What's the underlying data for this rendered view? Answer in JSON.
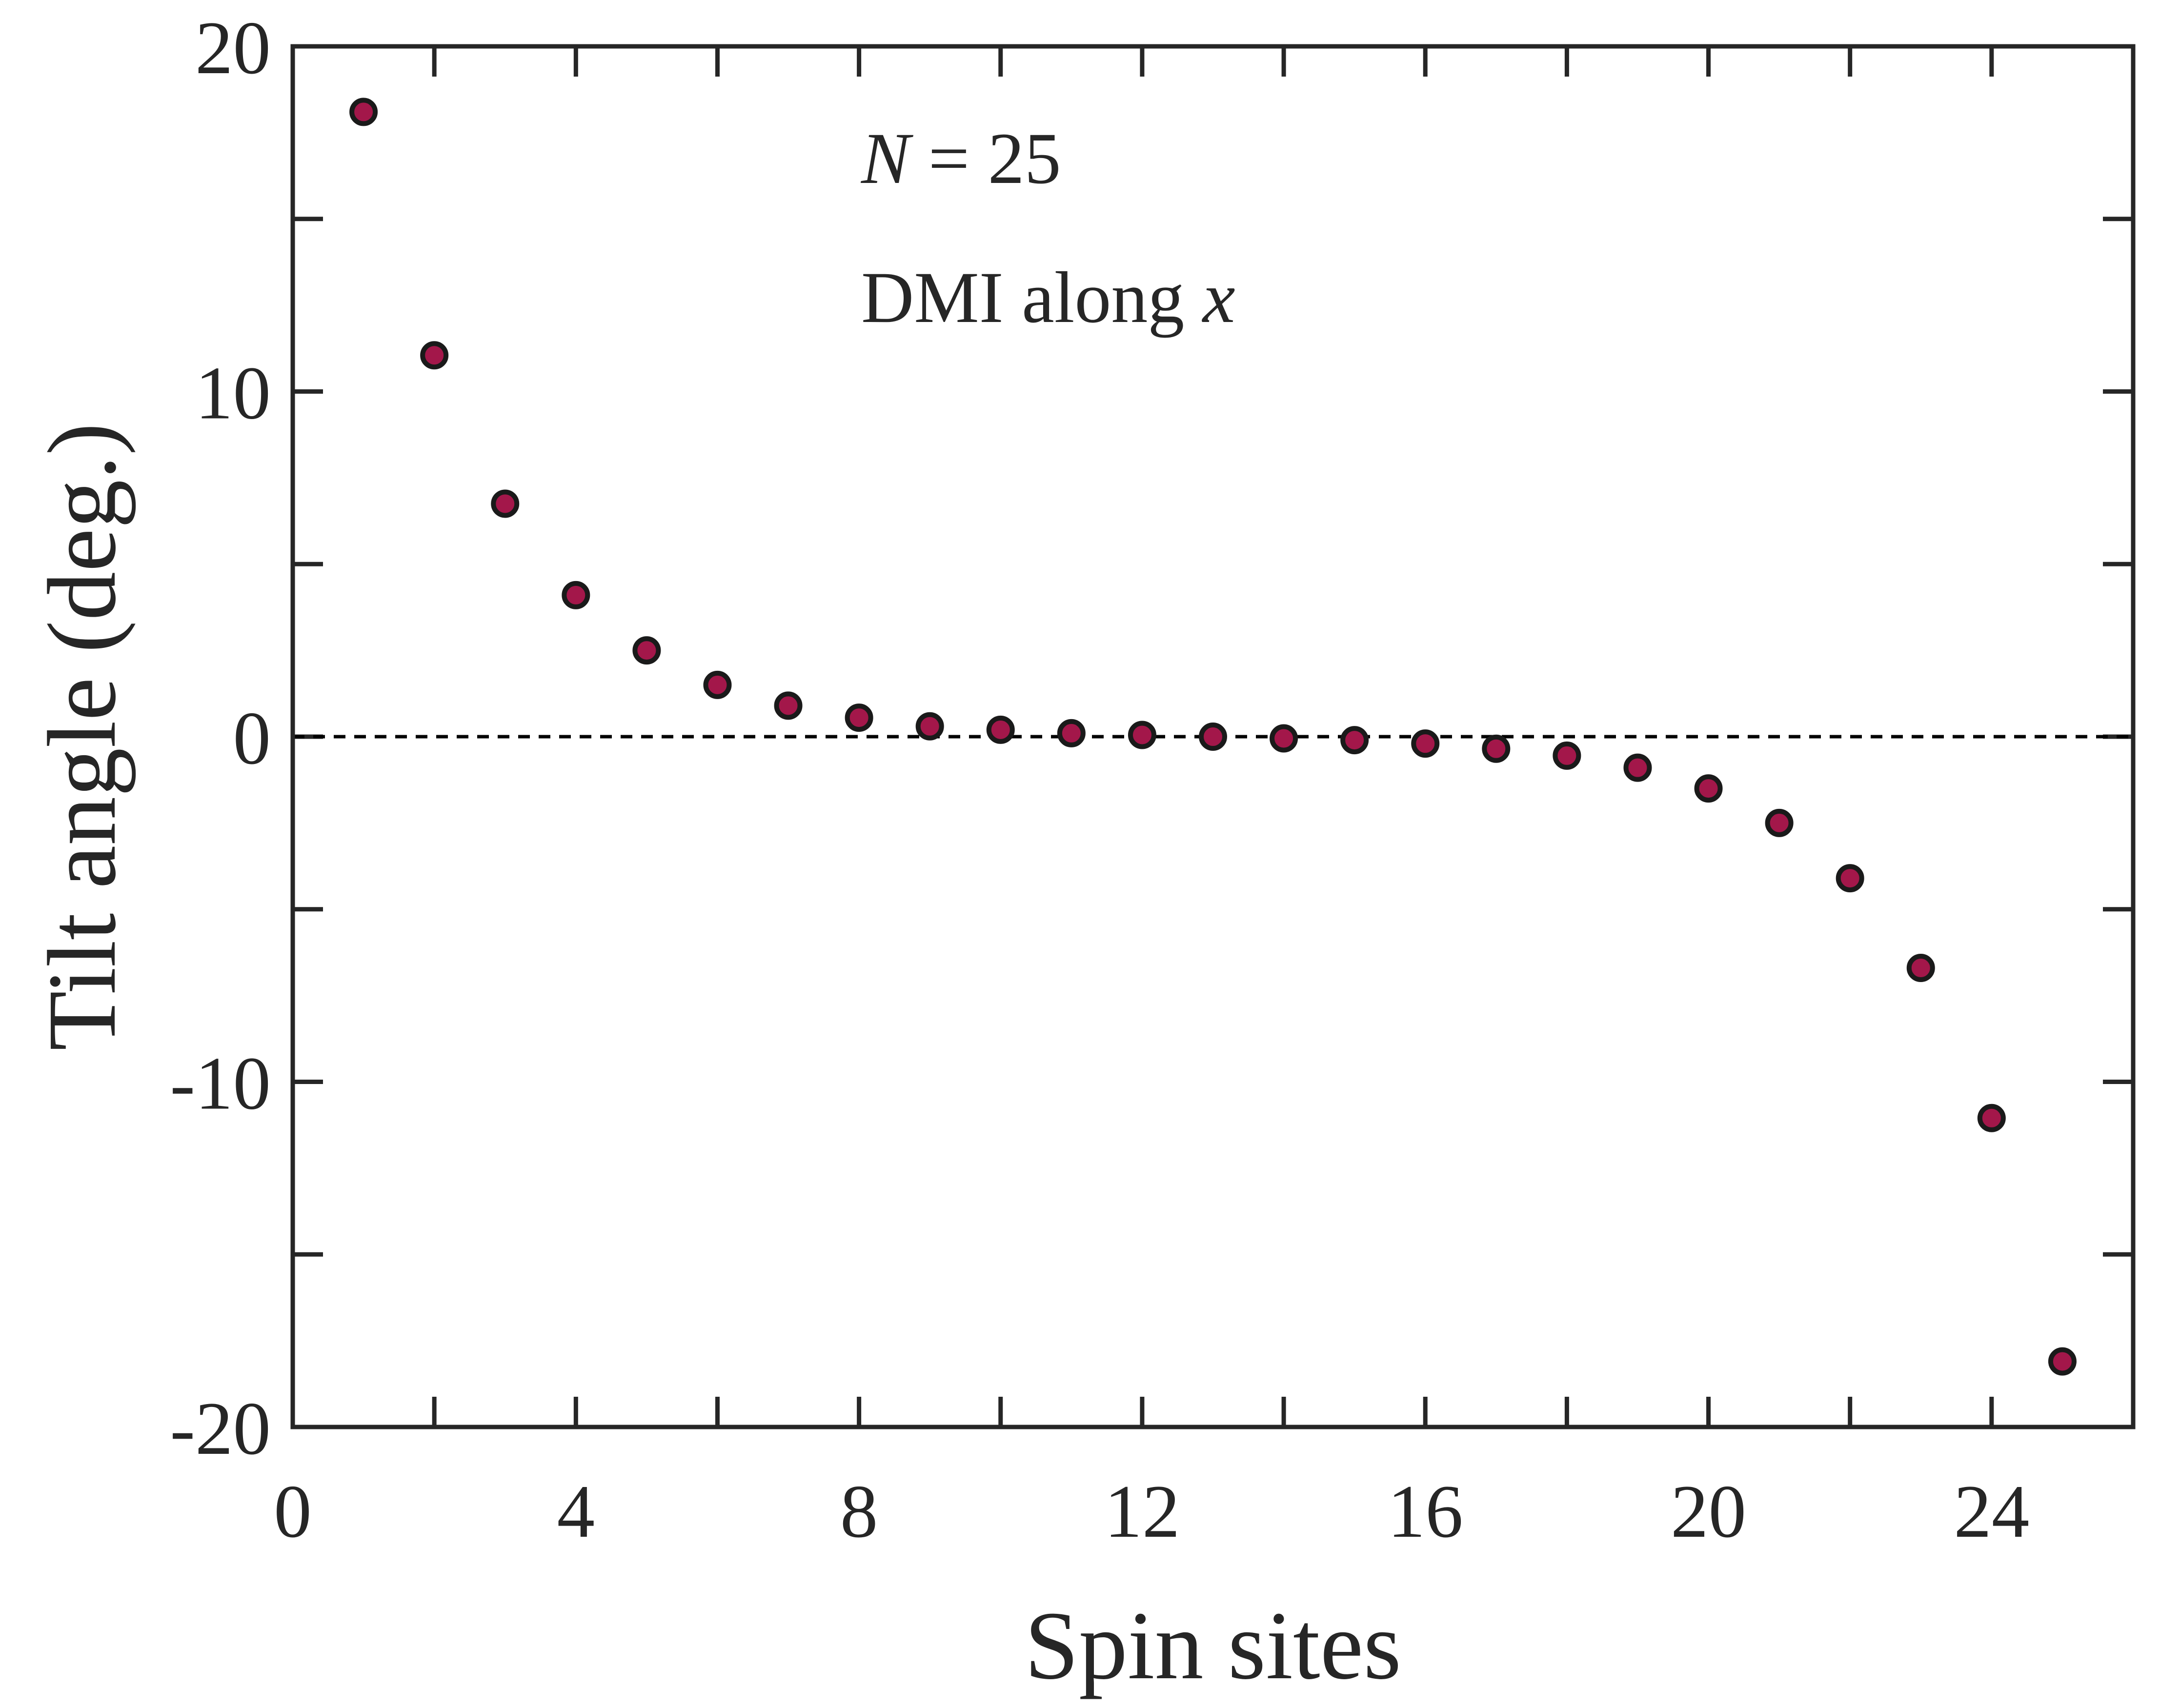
{
  "chart_data": {
    "type": "scatter",
    "title": "",
    "xlabel": "Spin sites",
    "ylabel": "Tilt angle (deg.)",
    "xlim": [
      0,
      26
    ],
    "ylim": [
      -20,
      20
    ],
    "x_ticks": [
      0,
      4,
      8,
      12,
      16,
      20,
      24
    ],
    "x_tick_labels": [
      "0",
      "4",
      "8",
      "12",
      "16",
      "20",
      "24"
    ],
    "x_minor_ticks": [
      2,
      6,
      10,
      14,
      18,
      22
    ],
    "y_ticks": [
      20,
      10,
      0,
      -10,
      -20
    ],
    "y_tick_labels": [
      "20",
      "10",
      "0",
      "-10",
      "-20"
    ],
    "y_minor_ticks": [
      15,
      5,
      -5,
      -15
    ],
    "reference_line": {
      "y": 0,
      "style": "dashed"
    },
    "annotation": {
      "n_symbol": "N",
      "n_rest": " = 25",
      "dmi_text": "DMI along ",
      "dmi_axis": "x"
    },
    "marker_color": "#A3174A",
    "series": [
      {
        "name": "Tilt angle",
        "x": [
          1,
          2,
          3,
          4,
          5,
          6,
          7,
          8,
          9,
          10,
          11,
          12,
          13,
          14,
          15,
          16,
          17,
          18,
          19,
          20,
          21,
          22,
          23,
          24,
          25
        ],
        "y": [
          18.1,
          11.05,
          6.75,
          4.1,
          2.5,
          1.5,
          0.9,
          0.55,
          0.3,
          0.2,
          0.1,
          0.05,
          0.0,
          -0.05,
          -0.1,
          -0.2,
          -0.35,
          -0.55,
          -0.9,
          -1.5,
          -2.5,
          -4.1,
          -6.7,
          -11.05,
          -18.1
        ]
      }
    ]
  }
}
